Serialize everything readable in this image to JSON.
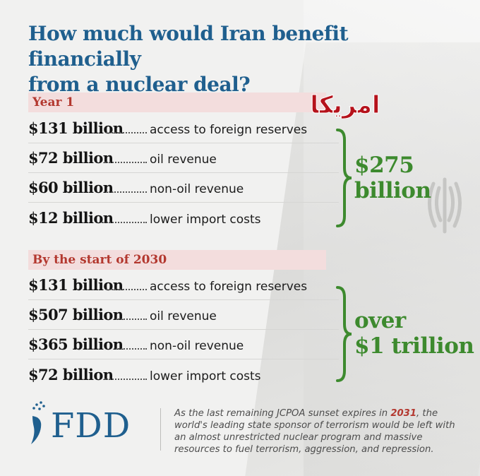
{
  "title_line1": "How much would Iran benefit financially",
  "title_line2": "from a nuclear deal?",
  "watermark_text": "امریکا",
  "sections": [
    {
      "label": "Year 1",
      "rows": [
        {
          "amount": "$131 billion",
          "desc": "access to foreign reserves"
        },
        {
          "amount": "$72 billion",
          "desc": "oil revenue"
        },
        {
          "amount": "$60 billion",
          "desc": "non-oil revenue"
        },
        {
          "amount": "$12 billion",
          "desc": "lower import costs"
        }
      ],
      "total_line1": "$275",
      "total_line2": "billion"
    },
    {
      "label": "By the start of 2030",
      "rows": [
        {
          "amount": "$131 billion",
          "desc": "access to foreign reserves"
        },
        {
          "amount": "$507 billion",
          "desc": "oil revenue"
        },
        {
          "amount": "$365 billion",
          "desc": "non-oil revenue"
        },
        {
          "amount": "$72 billion",
          "desc": "lower import costs"
        }
      ],
      "total_line1": "over",
      "total_line2": "$1 trillion"
    }
  ],
  "logo": "FDD",
  "footer": {
    "before": "As the last remaining JCPOA sunset expires in ",
    "year": "2031",
    "after": ", the world's leading state sponsor of terrorism would be left with an almost unrestricted nuclear program and massive resources to fuel terrorism, aggression, and repression."
  },
  "colors": {
    "title": "#1f5f8e",
    "section_label": "#b3382f",
    "section_bar": "#f3dddd",
    "total": "#3d8a2e",
    "watermark": "#b5121b"
  }
}
